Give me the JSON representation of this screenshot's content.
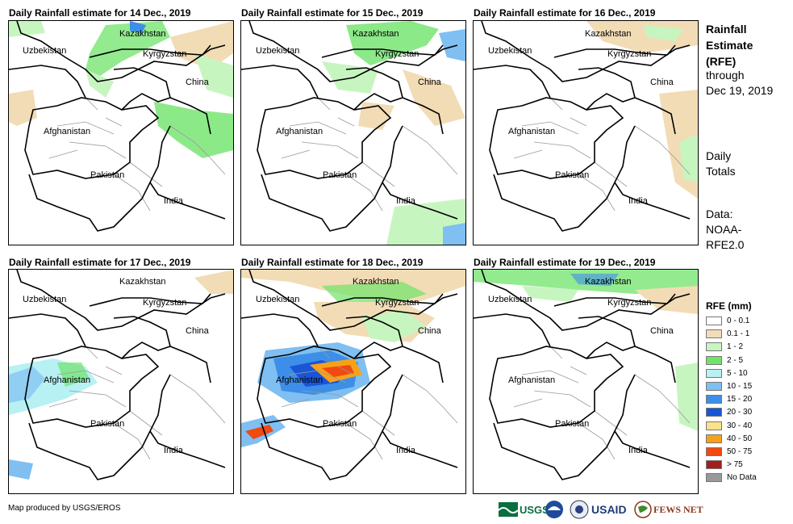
{
  "panels": [
    {
      "title": "Daily Rainfall estimate for 14 Dec., 2019"
    },
    {
      "title": "Daily Rainfall estimate for 15 Dec., 2019"
    },
    {
      "title": "Daily Rainfall estimate for 16 Dec., 2019"
    },
    {
      "title": "Daily Rainfall estimate for 17 Dec., 2019"
    },
    {
      "title": "Daily Rainfall estimate for 18 Dec., 2019"
    },
    {
      "title": "Daily Rainfall estimate for 19 Dec., 2019"
    }
  ],
  "countries": {
    "kazakhstan": "Kazakhstan",
    "uzbekistan": "Uzbekistan",
    "kyrgyzstan": "Kyrgyzstan",
    "china": "China",
    "afghanistan": "Afghanistan",
    "pakistan": "Pakistan",
    "india": "India"
  },
  "sidebar": {
    "title": [
      "Rainfall",
      "Estimate",
      "(RFE)"
    ],
    "through": [
      "through",
      "Dec 19, 2019"
    ],
    "totals": [
      "Daily",
      "Totals"
    ],
    "data": [
      "Data:",
      "NOAA-",
      "RFE2.0"
    ]
  },
  "legend": {
    "title": "RFE (mm)",
    "items": [
      {
        "label": "0 - 0.1",
        "color": "#ffffff"
      },
      {
        "label": "0.1 - 1",
        "color": "#f2dcb5"
      },
      {
        "label": "1 - 2",
        "color": "#c7f5c0"
      },
      {
        "label": "2 - 5",
        "color": "#6fe36a"
      },
      {
        "label": "5 - 10",
        "color": "#b7f1f4"
      },
      {
        "label": "10 - 15",
        "color": "#7fbff2"
      },
      {
        "label": "15 - 20",
        "color": "#3d8ee8"
      },
      {
        "label": "20 - 30",
        "color": "#1a55d6"
      },
      {
        "label": "30 - 40",
        "color": "#fde18a"
      },
      {
        "label": "40 - 50",
        "color": "#f7a11a"
      },
      {
        "label": "50 - 75",
        "color": "#f04a10"
      },
      {
        "label": "> 75",
        "color": "#a31d1d"
      },
      {
        "label": "No Data",
        "color": "#999999"
      }
    ]
  },
  "footer": {
    "credit": "Map produced by USGS/EROS"
  },
  "logos": {
    "usgs": "USGS",
    "usaid": "USAID",
    "fewsnet": "FEWS NET"
  }
}
